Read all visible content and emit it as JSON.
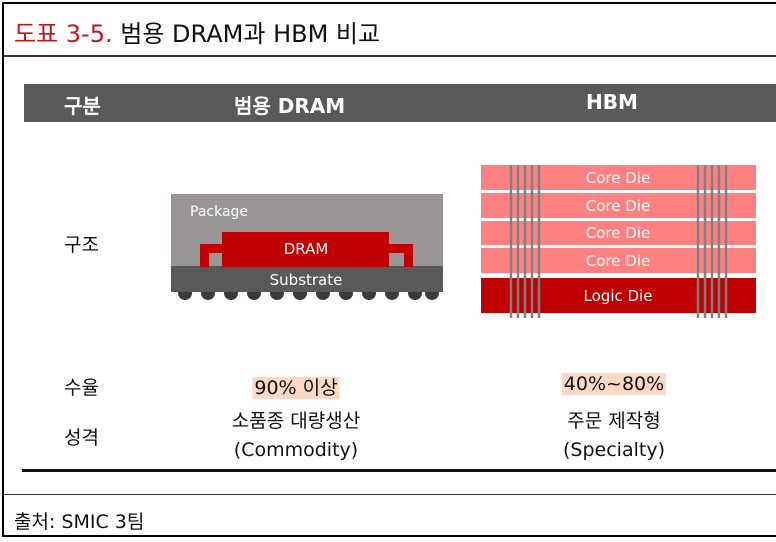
{
  "title": {
    "number": "도표 3-5.",
    "text": "범용 DRAM과 HBM 비교"
  },
  "header": {
    "col0": "구분",
    "col1": "범용 DRAM",
    "col2": "HBM"
  },
  "rows": {
    "structure": {
      "label": "구조"
    },
    "yield": {
      "label": "수율",
      "dram": "90% 이상",
      "hbm": "40%~80%"
    },
    "nature": {
      "label": "성격",
      "dram_line1": "소품종 대량생산",
      "dram_line2": "(Commodity)",
      "hbm_line1": "주문 제작형",
      "hbm_line2": "(Specialty)"
    }
  },
  "dram_diagram": {
    "package": "Package",
    "dram": "DRAM",
    "substrate": "Substrate"
  },
  "hbm_diagram": {
    "core_dies": [
      "Core Die",
      "Core Die",
      "Core Die",
      "Core Die"
    ],
    "logic_die": "Logic Die"
  },
  "source": "출처: SMIC 3팀",
  "colors": {
    "title_accent": "#c0161c",
    "header_bg": "#595959",
    "dram_red": "#c00000",
    "core_die": "#ff8080",
    "highlight": "#fbd9c6"
  }
}
